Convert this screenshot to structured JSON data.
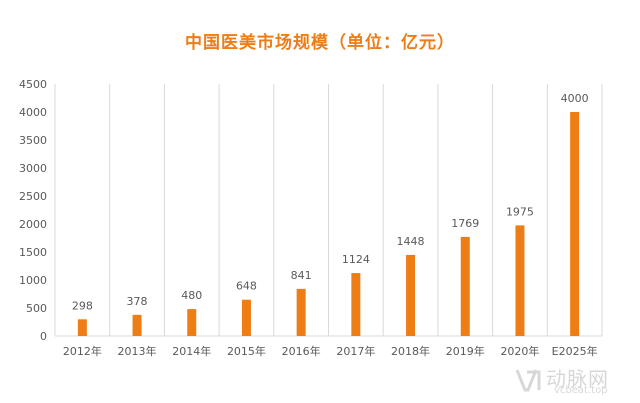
{
  "colors": {
    "bar": "#ED7D14",
    "title": "#ED7D14",
    "grid": "#D9D9D9",
    "text": "#595959"
  },
  "watermark": {
    "name": "动脉网",
    "url": "vcbeat.top",
    "icon": "vcbeat-logo-icon"
  },
  "chart_data": {
    "type": "bar",
    "title": "中国医美市场规模（单位：亿元）",
    "xlabel": "",
    "ylabel": "",
    "categories": [
      "2012年",
      "2013年",
      "2014年",
      "2015年",
      "2016年",
      "2017年",
      "2018年",
      "2019年",
      "2020年",
      "E2025年"
    ],
    "values": [
      298,
      378,
      480,
      648,
      841,
      1124,
      1448,
      1769,
      1975,
      4000
    ],
    "data_labels": [
      "298",
      "378",
      "480",
      "648",
      "841",
      "1124",
      "1448",
      "1769",
      "1975",
      "4000"
    ],
    "ylim": [
      0,
      4500
    ],
    "yticks": [
      0,
      500,
      1000,
      1500,
      2000,
      2500,
      3000,
      3500,
      4000,
      4500
    ],
    "grid": "vertical",
    "legend": "none"
  }
}
